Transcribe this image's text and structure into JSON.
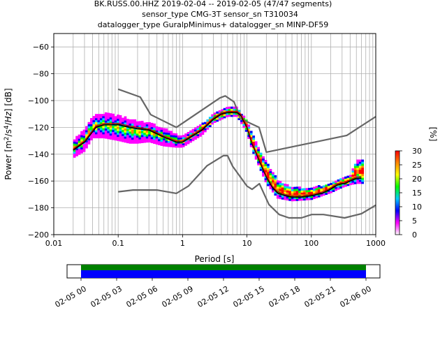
{
  "title_lines": [
    "BK.RUSS.00.HHZ   2019-02-04 -- 2019-02-05  (47/47 segments)",
    "sensor_type CMG-3T sensor_sn T310034",
    "datalogger_type GuralpMinimus+ datalogger_sn MINP-DF59"
  ],
  "chart_data": {
    "type": "heatmap",
    "title": "BK.RUSS.00.HHZ   2019-02-04 -- 2019-02-05  (47/47 segments)",
    "xlabel": "Period [s]",
    "ylabel": "Power [m^2/s^4/Hz] [dB]",
    "x_scale": "log",
    "xlim": [
      0.01,
      1000
    ],
    "ylim": [
      -200,
      -50
    ],
    "x_ticks": [
      {
        "v": 0.01,
        "label": "0.01"
      },
      {
        "v": 0.1,
        "label": "0.1"
      },
      {
        "v": 1,
        "label": "1"
      },
      {
        "v": 10,
        "label": "10"
      },
      {
        "v": 100,
        "label": "100"
      },
      {
        "v": 1000,
        "label": "1000"
      }
    ],
    "y_ticks": [
      {
        "v": -200,
        "label": "−200"
      },
      {
        "v": -180,
        "label": "−180"
      },
      {
        "v": -160,
        "label": "−160"
      },
      {
        "v": -140,
        "label": "−140"
      },
      {
        "v": -120,
        "label": "−120"
      },
      {
        "v": -100,
        "label": "−100"
      },
      {
        "v": -80,
        "label": "−80"
      },
      {
        "v": -60,
        "label": "−60"
      }
    ],
    "grid": true,
    "colorbar": {
      "label": "[%]",
      "range": [
        0,
        30
      ],
      "ticks": [
        {
          "v": 0,
          "label": "0"
        },
        {
          "v": 5,
          "label": "5"
        },
        {
          "v": 10,
          "label": "10"
        },
        {
          "v": 15,
          "label": "15"
        },
        {
          "v": 20,
          "label": "20"
        },
        {
          "v": 25,
          "label": "25"
        },
        {
          "v": 30,
          "label": "30"
        }
      ],
      "colors": [
        "#ffffff",
        "#ff00ff",
        "#0000ff",
        "#00ccff",
        "#00ff00",
        "#ffff00",
        "#ff8800",
        "#ff0000"
      ]
    },
    "series": [
      {
        "role": "noise-model-high",
        "color": "#666666",
        "x": [
          0.1,
          0.22,
          0.32,
          0.8,
          3.8,
          4.6,
          6.3,
          7.9,
          15.4,
          20,
          354.8,
          1000
        ],
        "y": [
          -91.5,
          -97.4,
          -110.5,
          -120,
          -98,
          -96.5,
          -101,
          -113.5,
          -120,
          -138.5,
          -126,
          -112
        ]
      },
      {
        "role": "noise-model-low",
        "color": "#666666",
        "x": [
          0.1,
          0.17,
          0.4,
          0.8,
          1.24,
          2.4,
          4.3,
          5,
          6,
          10,
          12,
          15.6,
          21.9,
          31.6,
          45,
          70,
          101,
          154,
          328,
          600,
          1000
        ],
        "y": [
          -168,
          -166.7,
          -166.7,
          -169.2,
          -163.7,
          -148.6,
          -141.1,
          -141.1,
          -149,
          -163.8,
          -166.2,
          -162,
          -177.5,
          -185,
          -187.5,
          -187.5,
          -185,
          -185,
          -187.5,
          -184.4,
          -178
        ]
      },
      {
        "role": "mean",
        "color": "#000000",
        "x": [
          0.02,
          0.03,
          0.045,
          0.06,
          0.1,
          0.15,
          0.2,
          0.3,
          0.5,
          0.8,
          1,
          2,
          3,
          4,
          5,
          7,
          8,
          10,
          12,
          15,
          20,
          25,
          30,
          40,
          50,
          70,
          100,
          150,
          200,
          250,
          300,
          330,
          400,
          500,
          600
        ],
        "y": [
          -137,
          -131,
          -120,
          -118,
          -118,
          -120,
          -121,
          -122,
          -127,
          -131,
          -131,
          -122,
          -114,
          -110,
          -109,
          -109,
          -111,
          -120,
          -132,
          -143,
          -157,
          -165,
          -169,
          -171,
          -172,
          -172,
          -171,
          -169,
          -166,
          -163,
          -162,
          -162,
          -160,
          -158,
          -158
        ]
      },
      {
        "role": "mode",
        "color": "#cc0000",
        "x": [
          0.02,
          0.03,
          0.045,
          0.06,
          0.1,
          0.15,
          0.2,
          0.3,
          0.5,
          0.8,
          1,
          2,
          3,
          4,
          5,
          7,
          8,
          10,
          12,
          15,
          20,
          25,
          30,
          40,
          50,
          70,
          100,
          150,
          200,
          250,
          300,
          330,
          400,
          500,
          600
        ],
        "y": [
          -136,
          -130,
          -119,
          -117,
          -117,
          -119,
          -120,
          -121,
          -126,
          -130,
          -130,
          -121,
          -113,
          -109,
          -108,
          -108,
          -110,
          -119,
          -131,
          -142,
          -156,
          -164,
          -168,
          -170,
          -171,
          -171,
          -170,
          -168,
          -165,
          -162,
          -161,
          -161,
          -159,
          -157,
          -157
        ]
      }
    ],
    "psd_band": [
      {
        "x": 0.02,
        "lo": -143,
        "hi": -130
      },
      {
        "x": 0.03,
        "lo": -138,
        "hi": -122
      },
      {
        "x": 0.04,
        "lo": -128,
        "hi": -112
      },
      {
        "x": 0.06,
        "lo": -128,
        "hi": -110
      },
      {
        "x": 0.1,
        "lo": -130,
        "hi": -112
      },
      {
        "x": 0.15,
        "lo": -132,
        "hi": -114
      },
      {
        "x": 0.2,
        "lo": -132,
        "hi": -116
      },
      {
        "x": 0.3,
        "lo": -131,
        "hi": -117
      },
      {
        "x": 0.5,
        "lo": -134,
        "hi": -121
      },
      {
        "x": 0.8,
        "lo": -135,
        "hi": -126
      },
      {
        "x": 1,
        "lo": -135,
        "hi": -127
      },
      {
        "x": 2,
        "lo": -126,
        "hi": -118
      },
      {
        "x": 3,
        "lo": -117,
        "hi": -111
      },
      {
        "x": 5,
        "lo": -112,
        "hi": -106
      },
      {
        "x": 7,
        "lo": -112,
        "hi": -106
      },
      {
        "x": 10,
        "lo": -124,
        "hi": -115
      },
      {
        "x": 12,
        "lo": -137,
        "hi": -125
      },
      {
        "x": 15,
        "lo": -148,
        "hi": -136
      },
      {
        "x": 20,
        "lo": -162,
        "hi": -146
      },
      {
        "x": 30,
        "lo": -173,
        "hi": -160
      },
      {
        "x": 50,
        "lo": -175,
        "hi": -165
      },
      {
        "x": 100,
        "lo": -174,
        "hi": -166
      },
      {
        "x": 200,
        "lo": -169,
        "hi": -162
      },
      {
        "x": 300,
        "lo": -165,
        "hi": -158
      },
      {
        "x": 400,
        "lo": -163,
        "hi": -157
      },
      {
        "x": 500,
        "lo": -162,
        "hi": -145
      },
      {
        "x": 650,
        "lo": -162,
        "hi": -145
      }
    ]
  },
  "timeline": {
    "ticks": [
      "02-05 00",
      "02-05 03",
      "02-05 06",
      "02-05 09",
      "02-05 12",
      "02-05 15",
      "02-05 18",
      "02-05 21",
      "02-06 00"
    ],
    "bands": [
      {
        "role": "coverage-top",
        "color": "#008000"
      },
      {
        "role": "coverage-bottom",
        "color": "#0000ff"
      }
    ]
  }
}
